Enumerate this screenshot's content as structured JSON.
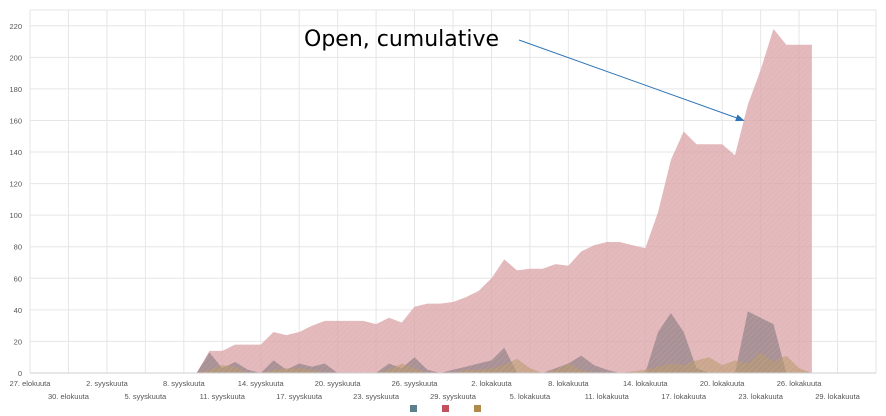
{
  "chart_data": {
    "type": "area",
    "title": "",
    "xlabel": "",
    "ylabel": "",
    "ylim": [
      0,
      230
    ],
    "y_ticks": [
      0,
      20,
      40,
      60,
      80,
      100,
      120,
      140,
      160,
      180,
      200,
      220
    ],
    "x_tick_labels": [
      "27. elokuuta",
      "30. elokuuta",
      "2. syyskuuta",
      "5. syyskuuta",
      "8. syyskuuta",
      "11. syyskuuta",
      "14. syyskuuta",
      "17. syyskuuta",
      "20. syyskuuta",
      "23. syyskuuta",
      "26. syyskuuta",
      "29. syyskuuta",
      "2. lokakuuta",
      "5. lokakuuta",
      "8. lokakuuta",
      "11. lokakuuta",
      "14. lokakuuta",
      "17. lokakuuta",
      "20. lokakuuta",
      "23. lokakuuta",
      "26. lokakuuta",
      "29. lokakuuta"
    ],
    "grid": true,
    "legend_position": "bottom-center",
    "series": [
      {
        "name": "Open, cumulative",
        "color": "#d9a0a4",
        "points": [
          [
            13,
            0
          ],
          [
            14,
            14
          ],
          [
            15,
            14
          ],
          [
            16,
            18
          ],
          [
            17,
            18
          ],
          [
            18,
            18
          ],
          [
            19,
            26
          ],
          [
            20,
            24
          ],
          [
            21,
            26
          ],
          [
            22,
            30
          ],
          [
            23,
            33
          ],
          [
            24,
            33
          ],
          [
            25,
            33
          ],
          [
            26,
            33
          ],
          [
            27,
            31
          ],
          [
            28,
            35
          ],
          [
            29,
            32
          ],
          [
            30,
            42
          ],
          [
            31,
            44
          ],
          [
            32,
            44
          ],
          [
            33,
            45
          ],
          [
            34,
            48
          ],
          [
            35,
            52
          ],
          [
            36,
            60
          ],
          [
            37,
            72
          ],
          [
            38,
            65
          ],
          [
            39,
            66
          ],
          [
            40,
            66
          ],
          [
            41,
            69
          ],
          [
            42,
            68
          ],
          [
            43,
            77
          ],
          [
            44,
            81
          ],
          [
            45,
            83
          ],
          [
            46,
            83
          ],
          [
            47,
            81
          ],
          [
            48,
            79
          ],
          [
            49,
            102
          ],
          [
            50,
            135
          ],
          [
            51,
            153
          ],
          [
            52,
            145
          ],
          [
            53,
            145
          ],
          [
            54,
            145
          ],
          [
            55,
            138
          ],
          [
            56,
            170
          ],
          [
            57,
            192
          ],
          [
            58,
            218
          ],
          [
            59,
            208
          ],
          [
            60,
            208
          ],
          [
            61,
            208
          ],
          [
            61,
            0
          ]
        ]
      },
      {
        "color": "#8a7d83",
        "points": [
          [
            13,
            0
          ],
          [
            14,
            13
          ],
          [
            15,
            3
          ],
          [
            16,
            7
          ],
          [
            17,
            2
          ],
          [
            18,
            0
          ],
          [
            19,
            8
          ],
          [
            20,
            2
          ],
          [
            21,
            6
          ],
          [
            22,
            4
          ],
          [
            23,
            6
          ],
          [
            24,
            0
          ],
          [
            25,
            0
          ],
          [
            26,
            0
          ],
          [
            27,
            0
          ],
          [
            28,
            6
          ],
          [
            29,
            3
          ],
          [
            30,
            10
          ],
          [
            31,
            2
          ],
          [
            32,
            0
          ],
          [
            33,
            2
          ],
          [
            34,
            4
          ],
          [
            35,
            6
          ],
          [
            36,
            8
          ],
          [
            37,
            16
          ],
          [
            38,
            0
          ],
          [
            39,
            0
          ],
          [
            40,
            0
          ],
          [
            41,
            3
          ],
          [
            42,
            6
          ],
          [
            43,
            11
          ],
          [
            44,
            5
          ],
          [
            45,
            2
          ],
          [
            46,
            0
          ],
          [
            47,
            0
          ],
          [
            48,
            0
          ],
          [
            49,
            26
          ],
          [
            50,
            38
          ],
          [
            51,
            26
          ],
          [
            52,
            3
          ],
          [
            53,
            0
          ],
          [
            54,
            0
          ],
          [
            55,
            0
          ],
          [
            56,
            39
          ],
          [
            57,
            35
          ],
          [
            58,
            31
          ],
          [
            59,
            0
          ],
          [
            60,
            0
          ]
        ]
      },
      {
        "color": "#b99a6e",
        "points": [
          [
            13,
            0
          ],
          [
            14,
            2
          ],
          [
            15,
            5
          ],
          [
            16,
            4
          ],
          [
            17,
            0
          ],
          [
            18,
            0
          ],
          [
            19,
            2
          ],
          [
            20,
            3
          ],
          [
            21,
            3
          ],
          [
            22,
            2
          ],
          [
            23,
            0
          ],
          [
            24,
            0
          ],
          [
            25,
            0
          ],
          [
            26,
            0
          ],
          [
            27,
            0
          ],
          [
            28,
            2
          ],
          [
            29,
            6
          ],
          [
            30,
            3
          ],
          [
            31,
            0
          ],
          [
            32,
            0
          ],
          [
            33,
            0
          ],
          [
            34,
            2
          ],
          [
            35,
            2
          ],
          [
            36,
            3
          ],
          [
            37,
            5
          ],
          [
            38,
            9
          ],
          [
            39,
            3
          ],
          [
            40,
            0
          ],
          [
            41,
            2
          ],
          [
            42,
            6
          ],
          [
            43,
            2
          ],
          [
            44,
            0
          ],
          [
            45,
            0
          ],
          [
            46,
            0
          ],
          [
            47,
            1
          ],
          [
            48,
            2
          ],
          [
            49,
            4
          ],
          [
            50,
            6
          ],
          [
            51,
            5
          ],
          [
            52,
            8
          ],
          [
            53,
            10
          ],
          [
            54,
            5
          ],
          [
            55,
            8
          ],
          [
            56,
            6
          ],
          [
            57,
            13
          ],
          [
            58,
            7
          ],
          [
            59,
            11
          ],
          [
            60,
            3
          ],
          [
            61,
            0
          ]
        ]
      }
    ],
    "legend_colors": [
      "#5b7f8d",
      "#c3505d",
      "#b08a4a"
    ],
    "annotation": {
      "text": "Open, cumulative",
      "arrow_target": [
        56,
        160
      ]
    }
  }
}
